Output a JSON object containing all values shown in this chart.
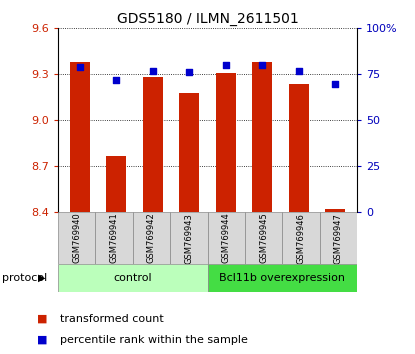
{
  "title": "GDS5180 / ILMN_2611501",
  "samples": [
    "GSM769940",
    "GSM769941",
    "GSM769942",
    "GSM769943",
    "GSM769944",
    "GSM769945",
    "GSM769946",
    "GSM769947"
  ],
  "transformed_counts": [
    9.38,
    8.77,
    9.28,
    9.18,
    9.31,
    9.38,
    9.24,
    8.42
  ],
  "percentile_ranks": [
    79,
    72,
    77,
    76,
    80,
    80,
    77,
    70
  ],
  "ylim_left": [
    8.4,
    9.6
  ],
  "ylim_right": [
    0,
    100
  ],
  "yticks_left": [
    8.4,
    8.7,
    9.0,
    9.3,
    9.6
  ],
  "yticks_right": [
    0,
    25,
    50,
    75,
    100
  ],
  "bar_color": "#cc2200",
  "dot_color": "#0000cc",
  "bar_bottom": 8.4,
  "grid_color": "#000000",
  "bg_color": "#ffffff",
  "groups": [
    {
      "label": "control",
      "count": 4,
      "color": "#bbffbb"
    },
    {
      "label": "Bcl11b overexpression",
      "count": 4,
      "color": "#44dd44"
    }
  ],
  "protocol_label": "protocol",
  "legend_items": [
    {
      "color": "#cc2200",
      "label": "transformed count"
    },
    {
      "color": "#0000cc",
      "label": "percentile rank within the sample"
    }
  ],
  "left_tick_color": "#cc2200",
  "right_tick_color": "#0000bb",
  "title_fontsize": 10,
  "tick_fontsize": 8,
  "sample_fontsize": 6,
  "group_fontsize": 8,
  "legend_fontsize": 8,
  "protocol_fontsize": 8
}
